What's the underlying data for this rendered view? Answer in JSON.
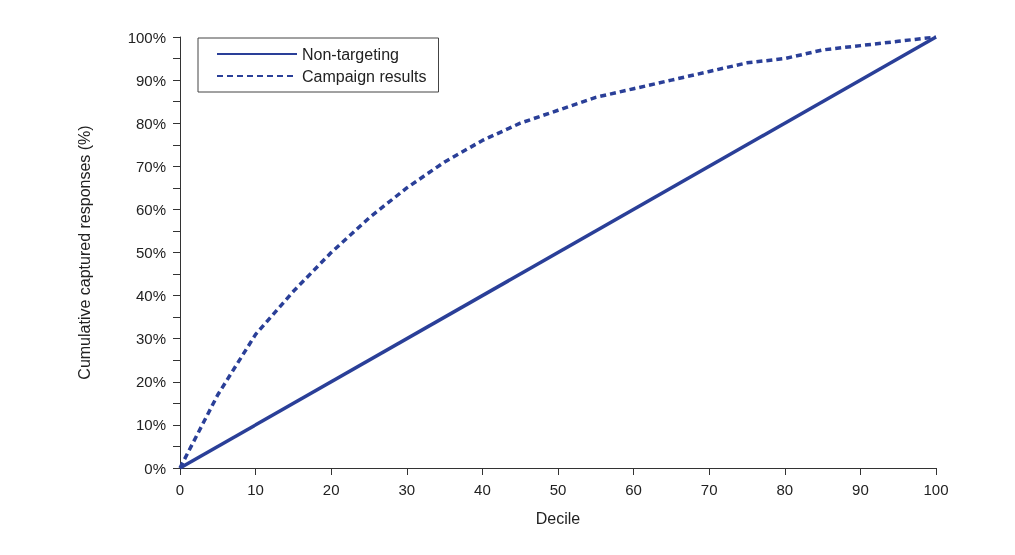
{
  "chart_data": {
    "type": "line",
    "xlabel": "Decile",
    "ylabel": "Cumulative captured responses (%)",
    "series": [
      {
        "name": "Non-targeting",
        "color": "#2a3f98",
        "line_style": "solid",
        "x": [
          0,
          100
        ],
        "values": [
          0,
          100
        ]
      },
      {
        "name": "Campaign results",
        "color": "#2a3f98",
        "line_style": "dashed",
        "x": [
          0,
          5,
          10,
          15,
          20,
          25,
          30,
          35,
          40,
          45,
          50,
          55,
          60,
          65,
          70,
          75,
          80,
          85,
          90,
          95,
          100
        ],
        "values": [
          0,
          17,
          31,
          41,
          50,
          58,
          65,
          71,
          76,
          80,
          83,
          86,
          88,
          90,
          92,
          94,
          95,
          97,
          98,
          99,
          100
        ]
      }
    ],
    "xlim": [
      0,
      100
    ],
    "xticks": [
      0,
      10,
      20,
      30,
      40,
      50,
      60,
      70,
      80,
      90,
      100
    ],
    "ylim": [
      0,
      100
    ],
    "yticks": [
      {
        "value": 0,
        "label": "0%"
      },
      {
        "value": 5,
        "label": null
      },
      {
        "value": 10,
        "label": "10%"
      },
      {
        "value": 15,
        "label": null
      },
      {
        "value": 20,
        "label": "20%"
      },
      {
        "value": 25,
        "label": null
      },
      {
        "value": 30,
        "label": "30%"
      },
      {
        "value": 35,
        "label": null
      },
      {
        "value": 40,
        "label": "40%"
      },
      {
        "value": 45,
        "label": null
      },
      {
        "value": 50,
        "label": "50%"
      },
      {
        "value": 55,
        "label": null
      },
      {
        "value": 60,
        "label": "60%"
      },
      {
        "value": 65,
        "label": null
      },
      {
        "value": 70,
        "label": "70%"
      },
      {
        "value": 75,
        "label": null
      },
      {
        "value": 80,
        "label": "80%"
      },
      {
        "value": 85,
        "label": null
      },
      {
        "value": 90,
        "label": "90%"
      },
      {
        "value": 95,
        "label": null
      },
      {
        "value": 100,
        "label": "100%"
      }
    ],
    "grid": false,
    "legend": "top left",
    "marker": "none"
  }
}
